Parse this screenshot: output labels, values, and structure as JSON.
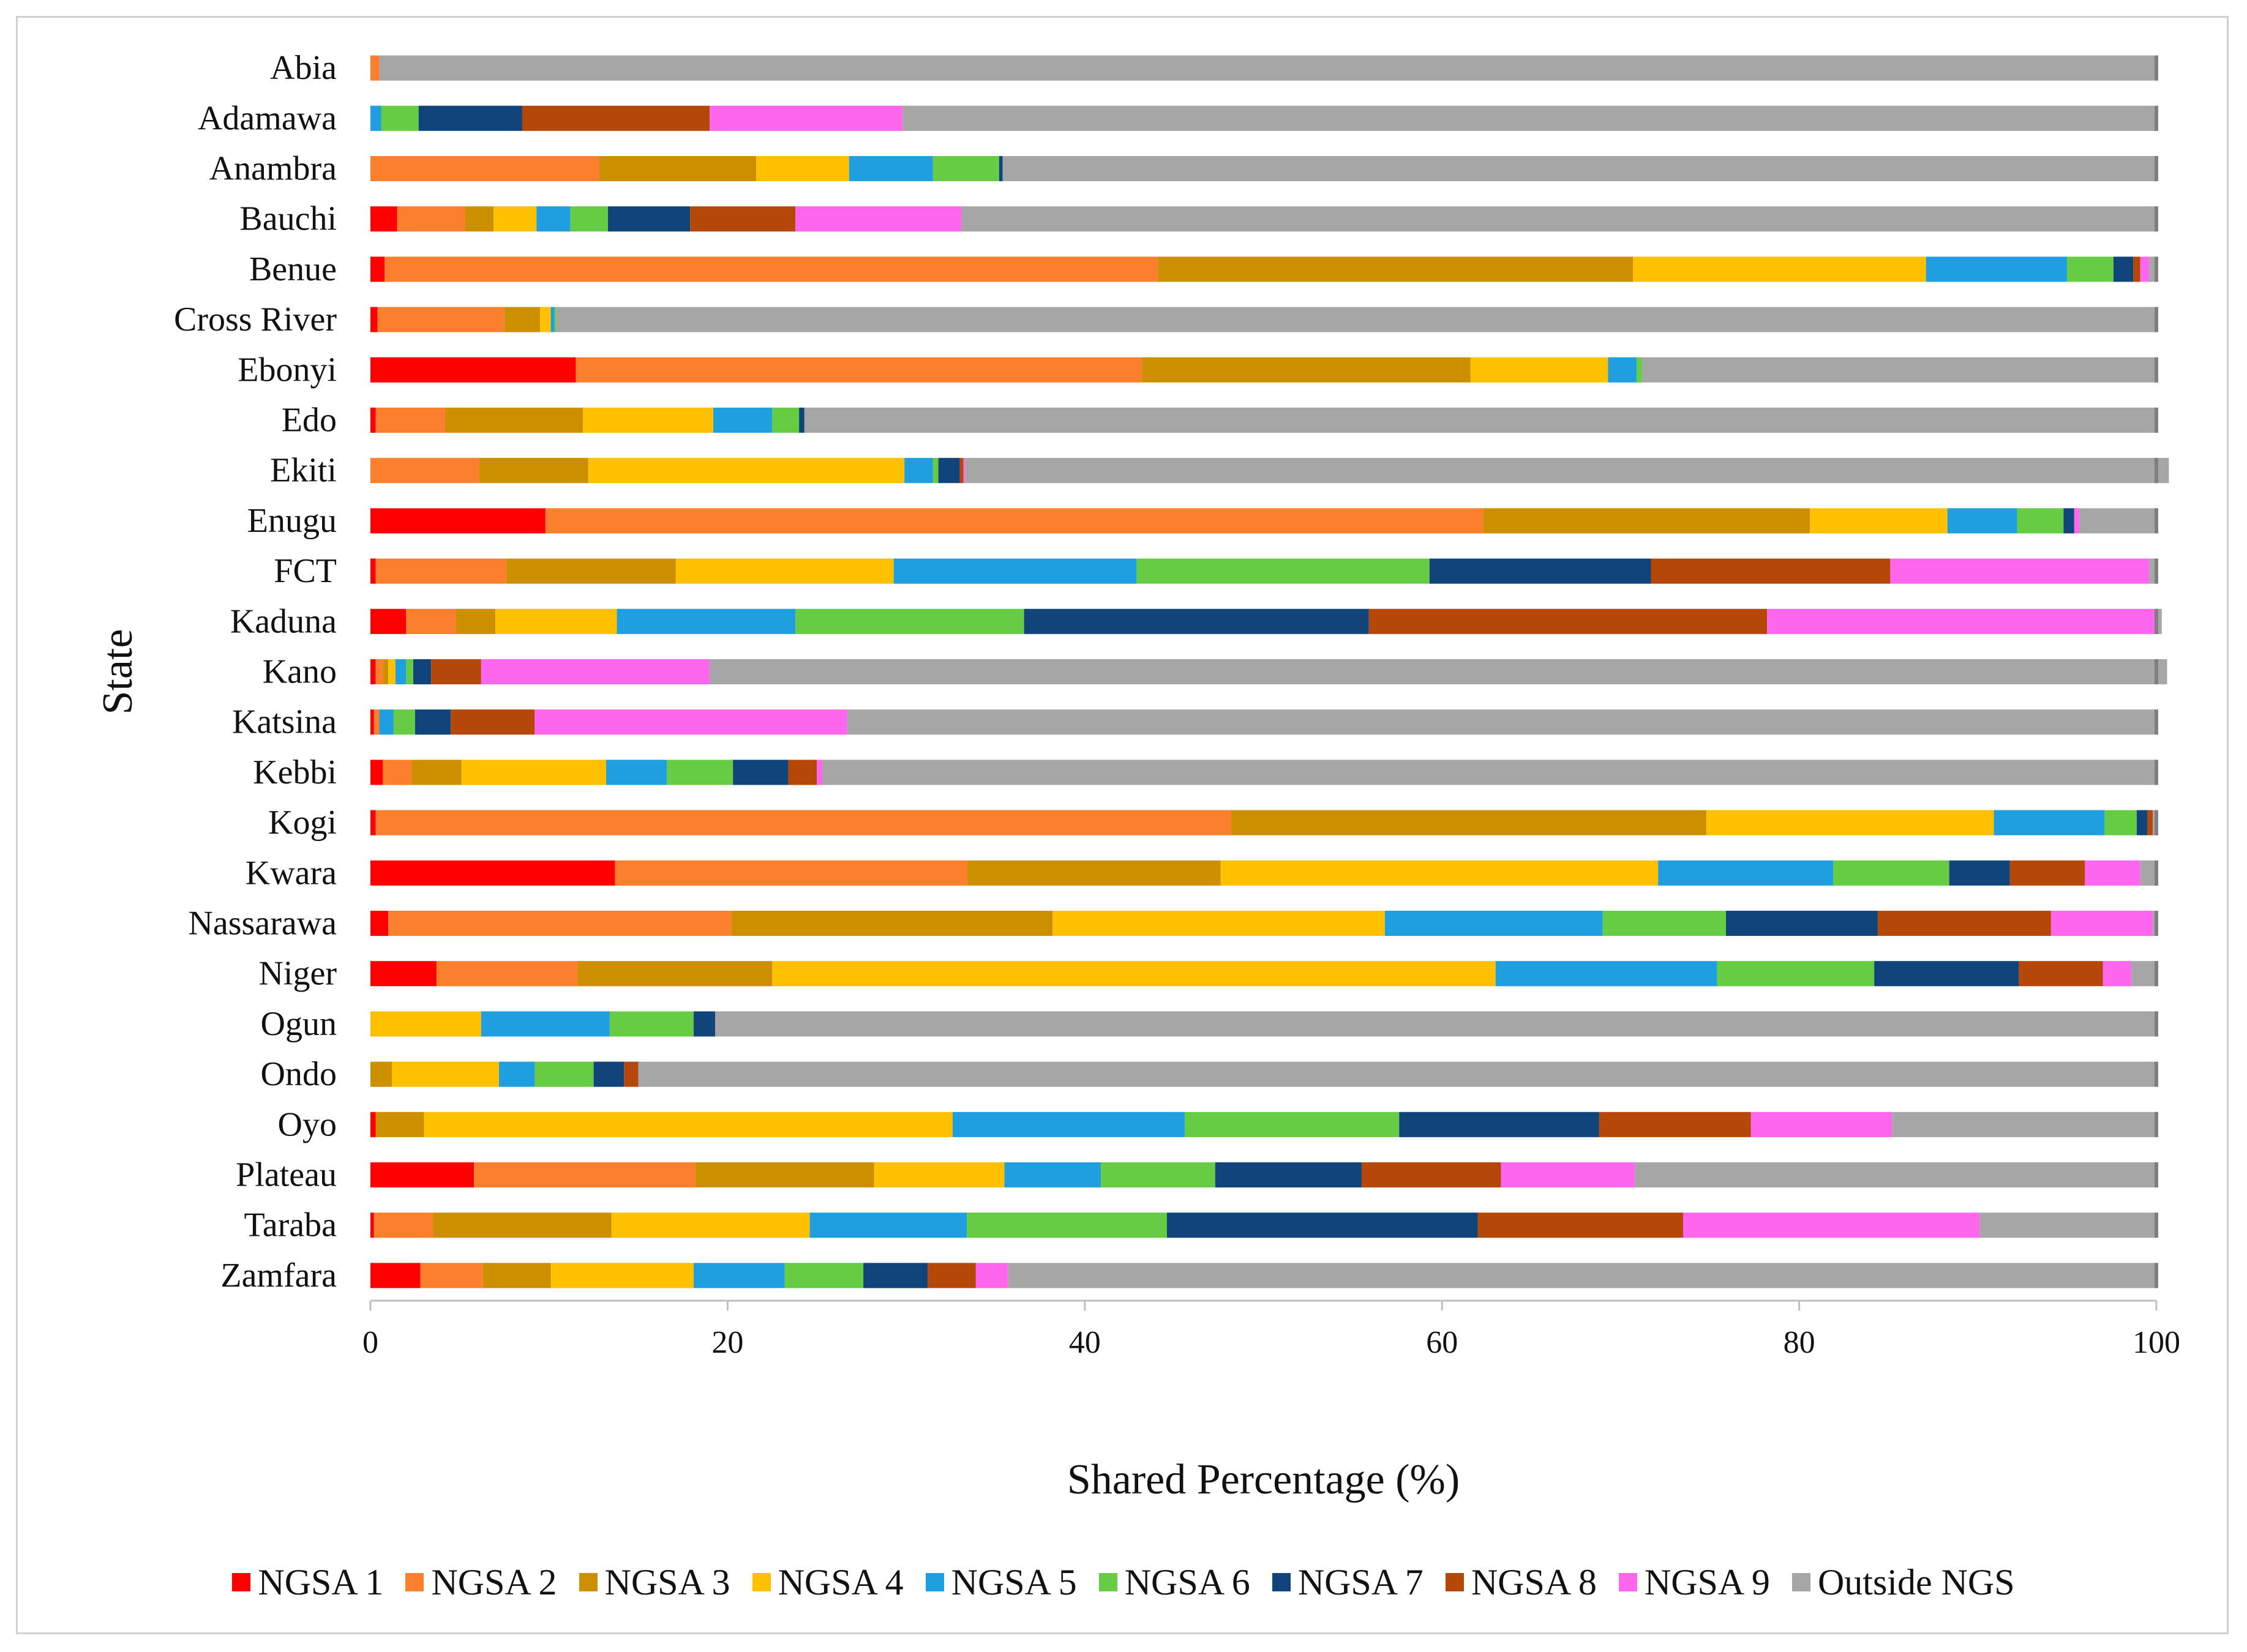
{
  "chart_data": {
    "type": "bar",
    "orientation": "horizontal",
    "stacked": true,
    "ylabel": "State",
    "xlabel": "Shared Percentage (%)",
    "xlim": [
      0,
      100
    ],
    "xticks": [
      0,
      20,
      40,
      60,
      80,
      100
    ],
    "legend_position": "bottom",
    "categories": [
      "Abia",
      "Adamawa",
      "Anambra",
      "Bauchi",
      "Benue",
      "Cross River",
      "Ebonyi",
      "Edo",
      "Ekiti",
      "Enugu",
      "FCT",
      "Kaduna",
      "Kano",
      "Katsina",
      "Kebbi",
      "Kogi",
      "Kwara",
      "Nassarawa",
      "Niger",
      "Ogun",
      "Ondo",
      "Oyo",
      "Plateau",
      "Taraba",
      "Zamfara"
    ],
    "series": [
      {
        "name": "NGSA 1",
        "color": "#ff0000",
        "values": [
          0,
          0,
          0,
          1.5,
          0.8,
          0.4,
          11.5,
          0.3,
          0,
          9.8,
          0.3,
          2,
          0.3,
          0.2,
          0.7,
          0.3,
          13.7,
          1,
          3.7,
          0,
          0,
          0.3,
          5.8,
          0.2,
          2.8
        ]
      },
      {
        "name": "NGSA 2",
        "color": "#fc7f2e",
        "values": [
          0.5,
          0,
          12.8,
          3.8,
          43.3,
          7.1,
          31.7,
          3.9,
          6.1,
          52.5,
          7.3,
          2.8,
          0.4,
          0.3,
          1.6,
          47.9,
          19.7,
          19.2,
          7.9,
          0,
          0,
          0,
          12.4,
          3.3,
          3.5
        ]
      },
      {
        "name": "NGSA 3",
        "color": "#cc8f00",
        "values": [
          0,
          0,
          8.8,
          1.6,
          26.6,
          2,
          18.4,
          7.7,
          6.1,
          18.3,
          9.5,
          2.2,
          0.3,
          0,
          2.8,
          26.6,
          14.2,
          18,
          10.9,
          0,
          1.2,
          2.7,
          10,
          10,
          3.8
        ]
      },
      {
        "name": "NGSA 4",
        "color": "#ffc000",
        "values": [
          0,
          0,
          5.2,
          2.4,
          16.4,
          0.6,
          7.7,
          7.3,
          17.7,
          7.7,
          12.2,
          6.8,
          0.4,
          0,
          8.1,
          16.1,
          24.5,
          18.6,
          40.5,
          6.2,
          6,
          29.6,
          7.3,
          11.1,
          8
        ]
      },
      {
        "name": "NGSA 5",
        "color": "#1f9ee0",
        "values": [
          0,
          0.6,
          4.7,
          1.9,
          7.9,
          0.2,
          1.6,
          3.3,
          1.6,
          3.9,
          13.6,
          10,
          0.6,
          0.8,
          3.4,
          6.2,
          9.8,
          12.2,
          12.4,
          7.2,
          2,
          13,
          5.4,
          8.8,
          5.1
        ]
      },
      {
        "name": "NGSA 6",
        "color": "#66cc44",
        "values": [
          0,
          2.1,
          3.7,
          2.1,
          2.6,
          0.1,
          0.3,
          1.5,
          0.3,
          2.6,
          16.4,
          12.8,
          0.4,
          1.2,
          3.7,
          1.8,
          6.5,
          6.9,
          8.8,
          4.7,
          3.3,
          12,
          6.4,
          11.2,
          4.4
        ]
      },
      {
        "name": "NGSA 7",
        "color": "#10447a",
        "values": [
          0,
          5.8,
          0.2,
          4.6,
          1.1,
          0,
          0,
          0.3,
          1.2,
          0.6,
          12.4,
          19.3,
          1,
          2,
          3.1,
          0.6,
          3.4,
          8.5,
          8.1,
          1.2,
          1.7,
          11.2,
          8.2,
          17.4,
          3.6
        ]
      },
      {
        "name": "NGSA 8",
        "color": "#b54709",
        "values": [
          0,
          10.5,
          0,
          5.9,
          0.4,
          0,
          0,
          0,
          0.2,
          0,
          13.4,
          22.3,
          2.8,
          4.7,
          1.6,
          0.3,
          4.2,
          9.7,
          4.7,
          0,
          0.8,
          8.5,
          7.8,
          11.5,
          2.7
        ]
      },
      {
        "name": "NGSA 9",
        "color": "#ff66ee",
        "values": [
          0,
          10.8,
          0,
          9.3,
          0.5,
          0,
          0,
          0,
          0.1,
          0.3,
          14.5,
          21.7,
          12.8,
          17.5,
          0.3,
          0,
          3.1,
          5.7,
          1.6,
          0,
          0,
          7.9,
          7.5,
          16.6,
          1.8
        ]
      },
      {
        "name": "Outside NGS",
        "color": "#a6a6a6",
        "values": [
          99.5,
          70.2,
          64.6,
          66.9,
          0.4,
          89.6,
          28.8,
          75.7,
          67.4,
          4.3,
          0.4,
          0.4,
          81.6,
          73.3,
          74.7,
          0.2,
          0.9,
          0.2,
          1.4,
          80.7,
          85,
          14.8,
          29.2,
          9.9,
          64.3
        ]
      }
    ]
  }
}
